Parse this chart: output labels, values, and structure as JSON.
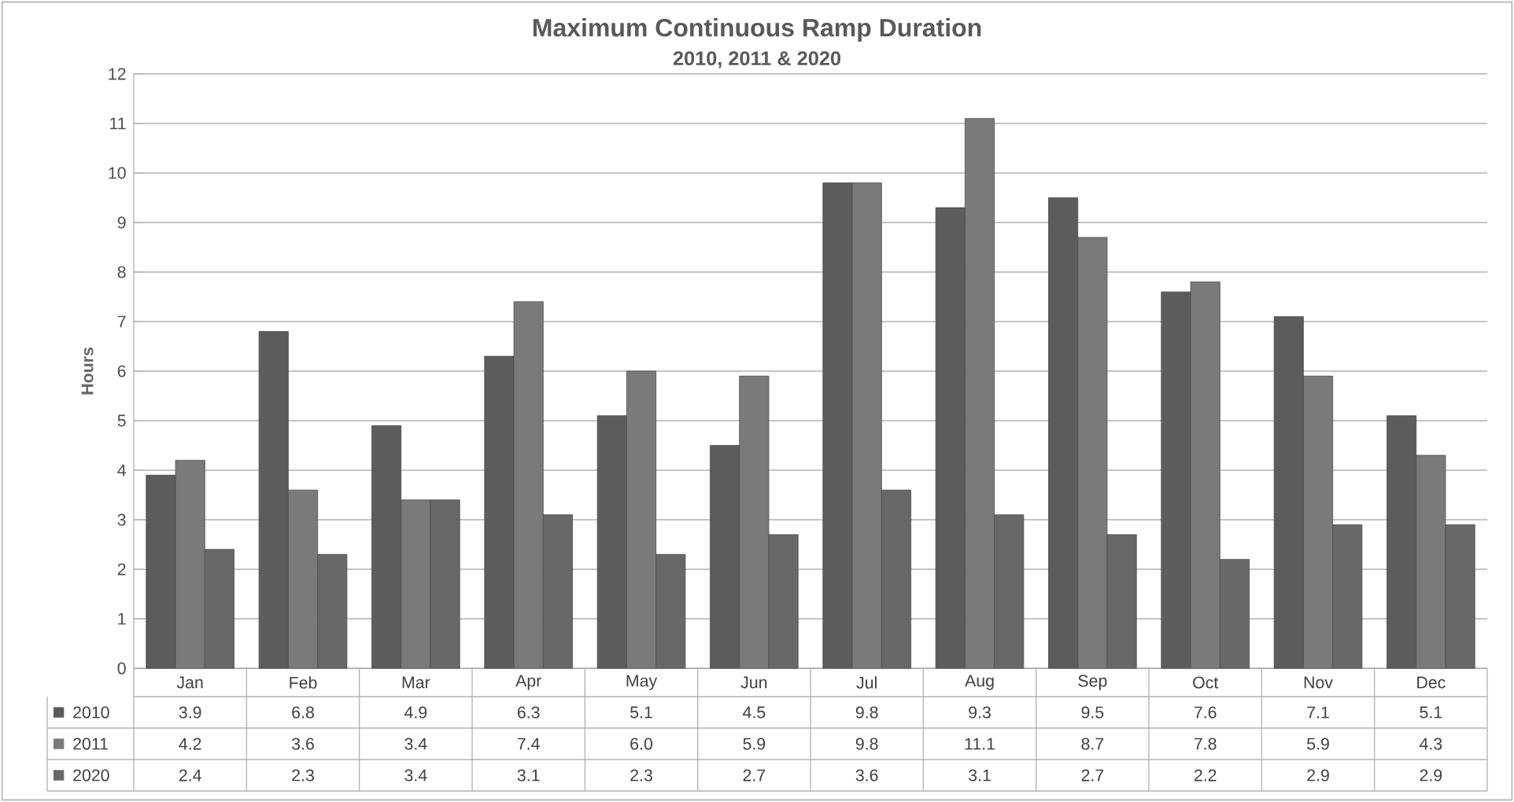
{
  "chart_data": {
    "type": "bar",
    "title": "Maximum Continuous Ramp Duration",
    "subtitle": "2010, 2011 & 2020",
    "ylabel": "Hours",
    "categories": [
      "Jan",
      "Feb",
      "Mar",
      "Apr",
      "May",
      "Jun",
      "Jul",
      "Aug",
      "Sep",
      "Oct",
      "Nov",
      "Dec"
    ],
    "series": [
      {
        "name": "2010",
        "color": "#5c5c5c",
        "values": [
          3.9,
          6.8,
          4.9,
          6.3,
          5.1,
          4.5,
          9.8,
          9.3,
          9.5,
          7.6,
          7.1,
          5.1
        ],
        "value_labels": [
          "3.9",
          "6.8",
          "4.9",
          "6.3",
          "5.1",
          "4.5",
          "9.8",
          "9.3",
          "9.5",
          "7.6",
          "7.1",
          "5.1"
        ]
      },
      {
        "name": "2011",
        "color": "#7a7a7a",
        "values": [
          4.2,
          3.6,
          3.4,
          7.4,
          6.0,
          5.9,
          9.8,
          11.1,
          8.7,
          7.8,
          5.9,
          4.3
        ],
        "value_labels": [
          "4.2",
          "3.6",
          "3.4",
          "7.4",
          "6.0",
          "5.9",
          "9.8",
          "11.1",
          "8.7",
          "7.8",
          "5.9",
          "4.3"
        ]
      },
      {
        "name": "2020",
        "color": "#686868",
        "values": [
          2.4,
          2.3,
          3.4,
          3.1,
          2.3,
          2.7,
          3.6,
          3.1,
          2.7,
          2.2,
          2.9,
          2.9
        ],
        "value_labels": [
          "2.4",
          "2.3",
          "3.4",
          "3.1",
          "2.3",
          "2.7",
          "3.6",
          "3.1",
          "2.7",
          "2.2",
          "2.9",
          "2.9"
        ]
      }
    ],
    "ylim": [
      0,
      12
    ],
    "yticks": [
      0,
      1,
      2,
      3,
      4,
      5,
      6,
      7,
      8,
      9,
      10,
      11,
      12
    ],
    "grid": "y",
    "legend": "bottom"
  }
}
